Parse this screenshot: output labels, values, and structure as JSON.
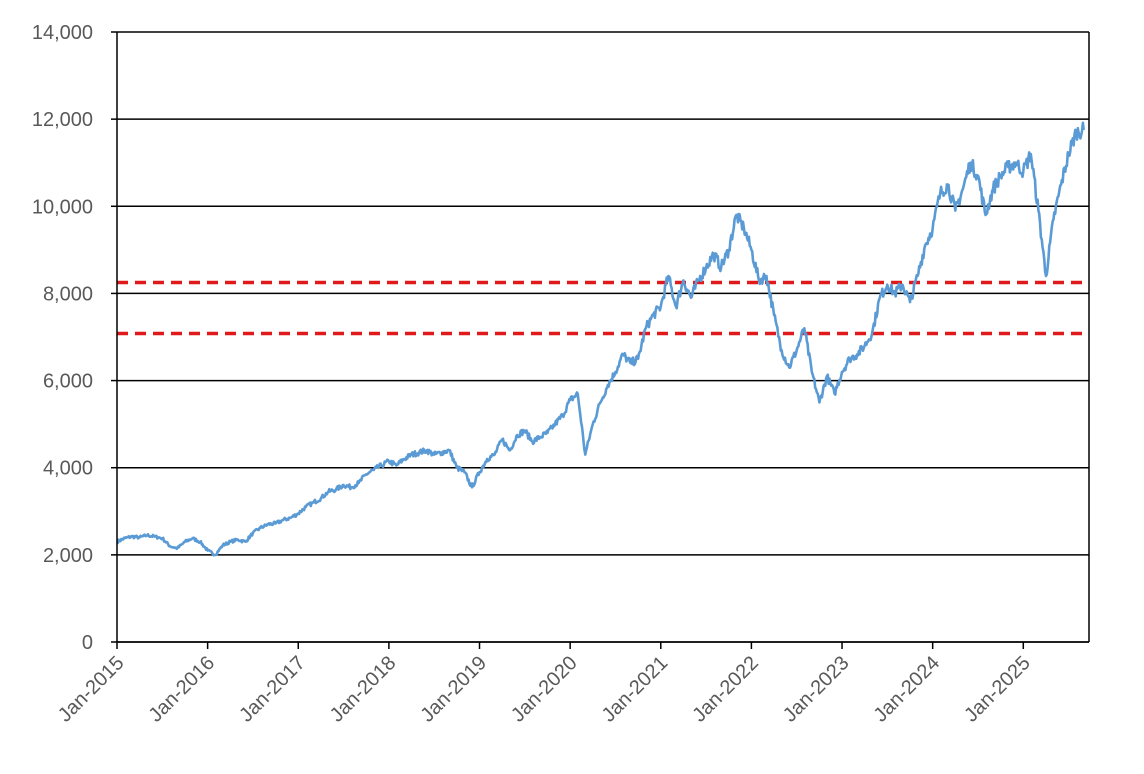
{
  "chart_data": {
    "type": "line",
    "title": "",
    "xlabel": "",
    "ylabel": "",
    "ylim": [
      0,
      14000
    ],
    "xlim": [
      "2015-01",
      "2025-09"
    ],
    "grid": "horizontal",
    "y_ticks": [
      "0",
      "2,000",
      "4,000",
      "6,000",
      "8,000",
      "10,000",
      "12,000",
      "14,000"
    ],
    "x_ticks": [
      "Jan-2015",
      "Jan-2016",
      "Jan-2017",
      "Jan-2018",
      "Jan-2019",
      "Jan-2020",
      "Jan-2021",
      "Jan-2022",
      "Jan-2023",
      "Jan-2024",
      "Jan-2025"
    ],
    "reference_lines": [
      {
        "value": 8250,
        "color": "#e0191b",
        "style": "dashed"
      },
      {
        "value": 7080,
        "color": "#e0191b",
        "style": "dashed"
      }
    ],
    "series": [
      {
        "color": "#5b9bd5",
        "points": [
          [
            "2015-01",
            2300
          ],
          [
            "2015-02",
            2380
          ],
          [
            "2015-03",
            2420
          ],
          [
            "2015-04",
            2400
          ],
          [
            "2015-05",
            2450
          ],
          [
            "2015-06",
            2420
          ],
          [
            "2015-07",
            2380
          ],
          [
            "2015-08",
            2200
          ],
          [
            "2015-09",
            2150
          ],
          [
            "2015-10",
            2300
          ],
          [
            "2015-11",
            2380
          ],
          [
            "2015-12",
            2300
          ],
          [
            "2016-01",
            2100
          ],
          [
            "2016-02",
            2000
          ],
          [
            "2016-03",
            2220
          ],
          [
            "2016-04",
            2300
          ],
          [
            "2016-05",
            2350
          ],
          [
            "2016-06",
            2300
          ],
          [
            "2016-07",
            2500
          ],
          [
            "2016-08",
            2620
          ],
          [
            "2016-09",
            2700
          ],
          [
            "2016-10",
            2720
          ],
          [
            "2016-11",
            2800
          ],
          [
            "2016-12",
            2850
          ],
          [
            "2017-01",
            2950
          ],
          [
            "2017-02",
            3100
          ],
          [
            "2017-03",
            3200
          ],
          [
            "2017-04",
            3300
          ],
          [
            "2017-05",
            3450
          ],
          [
            "2017-06",
            3500
          ],
          [
            "2017-07",
            3600
          ],
          [
            "2017-08",
            3550
          ],
          [
            "2017-09",
            3650
          ],
          [
            "2017-10",
            3850
          ],
          [
            "2017-11",
            3950
          ],
          [
            "2017-12",
            4050
          ],
          [
            "2018-01",
            4150
          ],
          [
            "2018-02",
            4050
          ],
          [
            "2018-03",
            4200
          ],
          [
            "2018-04",
            4300
          ],
          [
            "2018-05",
            4350
          ],
          [
            "2018-06",
            4400
          ],
          [
            "2018-07",
            4300
          ],
          [
            "2018-08",
            4350
          ],
          [
            "2018-09",
            4400
          ],
          [
            "2018-10",
            4000
          ],
          [
            "2018-11",
            3900
          ],
          [
            "2018-12",
            3550
          ],
          [
            "2019-01",
            3900
          ],
          [
            "2019-02",
            4200
          ],
          [
            "2019-03",
            4300
          ],
          [
            "2019-04",
            4650
          ],
          [
            "2019-05",
            4400
          ],
          [
            "2019-06",
            4750
          ],
          [
            "2019-07",
            4850
          ],
          [
            "2019-08",
            4600
          ],
          [
            "2019-09",
            4700
          ],
          [
            "2019-10",
            4800
          ],
          [
            "2019-11",
            5000
          ],
          [
            "2019-12",
            5200
          ],
          [
            "2020-01",
            5550
          ],
          [
            "2020-02",
            5700
          ],
          [
            "2020-03",
            4300
          ],
          [
            "2020-04",
            5000
          ],
          [
            "2020-05",
            5500
          ],
          [
            "2020-06",
            5900
          ],
          [
            "2020-07",
            6200
          ],
          [
            "2020-08",
            6600
          ],
          [
            "2020-09",
            6400
          ],
          [
            "2020-10",
            6500
          ],
          [
            "2020-11",
            7200
          ],
          [
            "2020-12",
            7500
          ],
          [
            "2021-01",
            7700
          ],
          [
            "2021-02",
            8400
          ],
          [
            "2021-03",
            7700
          ],
          [
            "2021-04",
            8300
          ],
          [
            "2021-05",
            7900
          ],
          [
            "2021-06",
            8300
          ],
          [
            "2021-07",
            8600
          ],
          [
            "2021-08",
            8900
          ],
          [
            "2021-09",
            8600
          ],
          [
            "2021-10",
            9000
          ],
          [
            "2021-11",
            9800
          ],
          [
            "2021-12",
            9500
          ],
          [
            "2022-01",
            9000
          ],
          [
            "2022-02",
            8300
          ],
          [
            "2022-03",
            8400
          ],
          [
            "2022-04",
            7500
          ],
          [
            "2022-05",
            6700
          ],
          [
            "2022-06",
            6300
          ],
          [
            "2022-07",
            6700
          ],
          [
            "2022-08",
            7200
          ],
          [
            "2022-09",
            6200
          ],
          [
            "2022-10",
            5500
          ],
          [
            "2022-11",
            6100
          ],
          [
            "2022-12",
            5700
          ],
          [
            "2023-01",
            6200
          ],
          [
            "2023-02",
            6500
          ],
          [
            "2023-03",
            6600
          ],
          [
            "2023-04",
            6800
          ],
          [
            "2023-05",
            7100
          ],
          [
            "2023-06",
            7900
          ],
          [
            "2023-07",
            8200
          ],
          [
            "2023-08",
            8000
          ],
          [
            "2023-09",
            8200
          ],
          [
            "2023-10",
            7800
          ],
          [
            "2023-11",
            8400
          ],
          [
            "2023-12",
            9100
          ],
          [
            "2024-01",
            9500
          ],
          [
            "2024-02",
            10300
          ],
          [
            "2024-03",
            10500
          ],
          [
            "2024-04",
            9900
          ],
          [
            "2024-05",
            10400
          ],
          [
            "2024-06",
            11000
          ],
          [
            "2024-07",
            10700
          ],
          [
            "2024-08",
            9800
          ],
          [
            "2024-09",
            10400
          ],
          [
            "2024-10",
            10700
          ],
          [
            "2024-11",
            10900
          ],
          [
            "2024-12",
            11000
          ],
          [
            "2025-01",
            10800
          ],
          [
            "2025-02",
            11200
          ],
          [
            "2025-03",
            9900
          ],
          [
            "2025-04",
            8400
          ],
          [
            "2025-05",
            9700
          ],
          [
            "2025-06",
            10500
          ],
          [
            "2025-07",
            11200
          ],
          [
            "2025-08",
            11700
          ],
          [
            "2025-09",
            11750
          ]
        ]
      }
    ]
  }
}
